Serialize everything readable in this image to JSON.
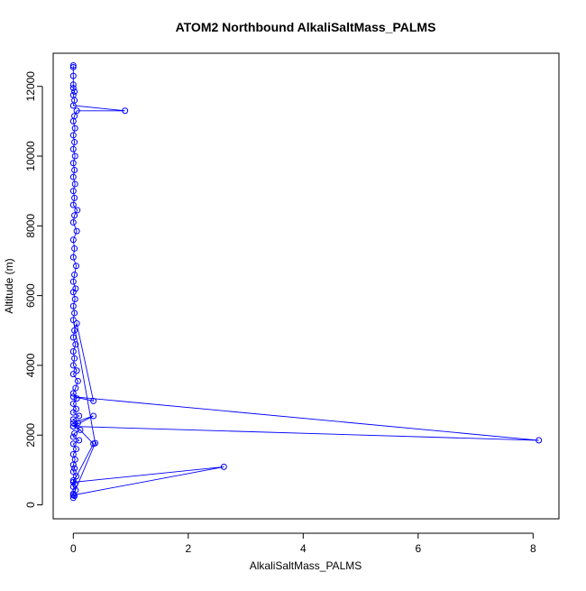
{
  "chart_data": {
    "type": "line",
    "title": "ATOM2 Northbound AlkaliSaltMass_PALMS",
    "xlabel": "AlkaliSaltMass_PALMS",
    "ylabel": "Altitude (m)",
    "xlim": [
      -0.35,
      8.45
    ],
    "ylim": [
      -400,
      12950
    ],
    "x_ticks": [
      0,
      2,
      4,
      6,
      8
    ],
    "y_ticks": [
      0,
      2000,
      4000,
      6000,
      8000,
      10000,
      12000
    ],
    "x_tick_labels": [
      "0",
      "2",
      "4",
      "6",
      "8"
    ],
    "y_tick_labels": [
      "0",
      "2000",
      "4000",
      "6000",
      "8000",
      "10000",
      "12000"
    ],
    "grid": false,
    "legend": "none",
    "series_color": "#0000ff",
    "marker": "open-circle",
    "series": [
      {
        "points": [
          [
            0.0,
            200
          ],
          [
            0.02,
            260
          ],
          [
            0.0,
            320
          ],
          [
            0.04,
            420
          ],
          [
            0.0,
            520
          ],
          [
            0.03,
            600
          ],
          [
            0.0,
            700
          ],
          [
            0.05,
            820
          ],
          [
            0.0,
            950
          ],
          [
            0.02,
            1050
          ],
          [
            0.0,
            1150
          ],
          [
            0.03,
            1300
          ],
          [
            0.0,
            1450
          ],
          [
            0.05,
            1600
          ],
          [
            0.0,
            1750
          ],
          [
            0.1,
            1850
          ],
          [
            0.0,
            1950
          ],
          [
            0.02,
            2050
          ],
          [
            0.12,
            2150
          ],
          [
            0.0,
            2250
          ],
          [
            0.08,
            2350
          ],
          [
            0.0,
            2450
          ],
          [
            0.1,
            2550
          ],
          [
            0.0,
            2650
          ],
          [
            0.05,
            2750
          ],
          [
            0.0,
            2900
          ],
          [
            0.06,
            3050
          ],
          [
            0.0,
            3200
          ],
          [
            0.04,
            3350
          ],
          [
            0.08,
            3550
          ],
          [
            0.0,
            3750
          ],
          [
            0.06,
            3850
          ],
          [
            0.0,
            4000
          ],
          [
            0.02,
            4200
          ],
          [
            0.0,
            4400
          ],
          [
            0.04,
            4600
          ],
          [
            0.0,
            4800
          ],
          [
            0.02,
            5000
          ],
          [
            0.06,
            5200
          ],
          [
            0.35,
            2980
          ],
          [
            0.0,
            3100
          ],
          [
            8.1,
            1850
          ],
          [
            0.0,
            2250
          ],
          [
            0.35,
            2550
          ],
          [
            0.0,
            2350
          ],
          [
            0.35,
            1750
          ],
          [
            0.0,
            650
          ],
          [
            2.62,
            1090
          ],
          [
            0.0,
            280
          ],
          [
            0.38,
            1770
          ],
          [
            0.0,
            5300
          ],
          [
            0.02,
            5500
          ],
          [
            0.0,
            5700
          ],
          [
            0.03,
            5900
          ],
          [
            0.0,
            6100
          ],
          [
            0.04,
            6200
          ],
          [
            0.0,
            6400
          ],
          [
            0.02,
            6600
          ],
          [
            0.05,
            6850
          ],
          [
            0.0,
            7100
          ],
          [
            0.02,
            7350
          ],
          [
            0.0,
            7600
          ],
          [
            0.06,
            7850
          ],
          [
            0.0,
            8100
          ],
          [
            0.02,
            8300
          ],
          [
            0.07,
            8450
          ],
          [
            0.0,
            8600
          ],
          [
            0.02,
            8800
          ],
          [
            0.0,
            9000
          ],
          [
            0.03,
            9200
          ],
          [
            0.0,
            9400
          ],
          [
            0.02,
            9600
          ],
          [
            0.0,
            9800
          ],
          [
            0.03,
            10000
          ],
          [
            0.0,
            10200
          ],
          [
            0.02,
            10400
          ],
          [
            0.0,
            10600
          ],
          [
            0.03,
            10800
          ],
          [
            0.0,
            11000
          ],
          [
            0.02,
            11150
          ],
          [
            0.06,
            11300
          ],
          [
            0.9,
            11300
          ],
          [
            0.0,
            11450
          ],
          [
            0.02,
            11600
          ],
          [
            0.0,
            11750
          ],
          [
            0.02,
            11850
          ],
          [
            0.0,
            11950
          ],
          [
            0.0,
            12050
          ],
          [
            0.0,
            12300
          ],
          [
            0.0,
            12550
          ],
          [
            0.0,
            12600
          ]
        ]
      }
    ]
  }
}
